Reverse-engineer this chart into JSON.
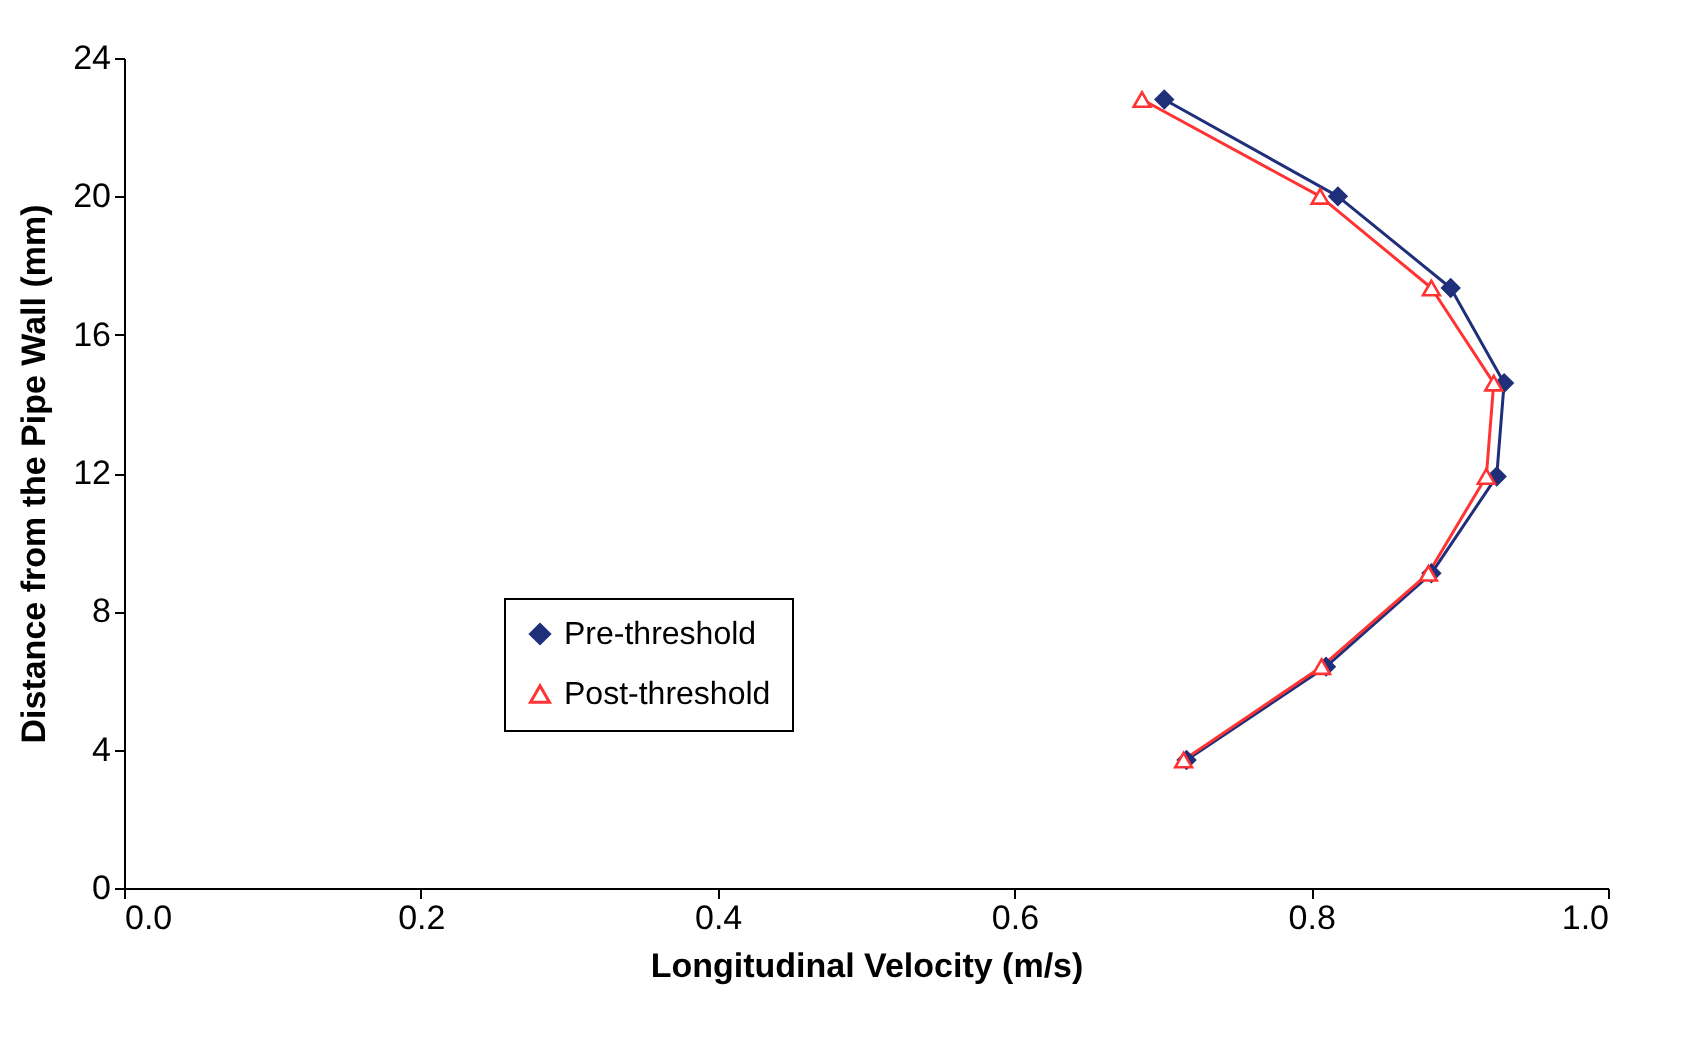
{
  "chart_data": {
    "type": "line",
    "xlabel": "Longitudinal Velocity (m/s)",
    "ylabel": "Distance from the Pipe Wall (mm)",
    "xlim": [
      0,
      1
    ],
    "xticks": [
      {
        "value": 0,
        "label": "0.0"
      },
      {
        "value": 0.2,
        "label": "0.2"
      },
      {
        "value": 0.4,
        "label": "0.4"
      },
      {
        "value": 0.6,
        "label": "0.6"
      },
      {
        "value": 0.8,
        "label": "0.8"
      },
      {
        "value": 1,
        "label": "1.0"
      }
    ],
    "ylim": [
      0,
      24
    ],
    "yticks": [
      0,
      4,
      8,
      12,
      16,
      20,
      24
    ],
    "grid": false,
    "legend": "bottom left",
    "line_style": "solid",
    "series": [
      {
        "name": "Pre-threshold",
        "color": "#1f2f7a",
        "marker": "diamond",
        "x": [
          0.701,
          0.818,
          0.894,
          0.93,
          0.925,
          0.881,
          0.81,
          0.716
        ],
        "values": [
          22.8,
          20.0,
          17.35,
          14.6,
          11.9,
          9.1,
          6.4,
          3.7
        ]
      },
      {
        "name": "Post-threshold",
        "color": "#ff3333",
        "marker": "triangle",
        "x": [
          0.686,
          0.806,
          0.881,
          0.923,
          0.918,
          0.879,
          0.807,
          0.714
        ],
        "values": [
          22.8,
          20.0,
          17.35,
          14.6,
          11.9,
          9.1,
          6.4,
          3.7
        ]
      }
    ]
  }
}
